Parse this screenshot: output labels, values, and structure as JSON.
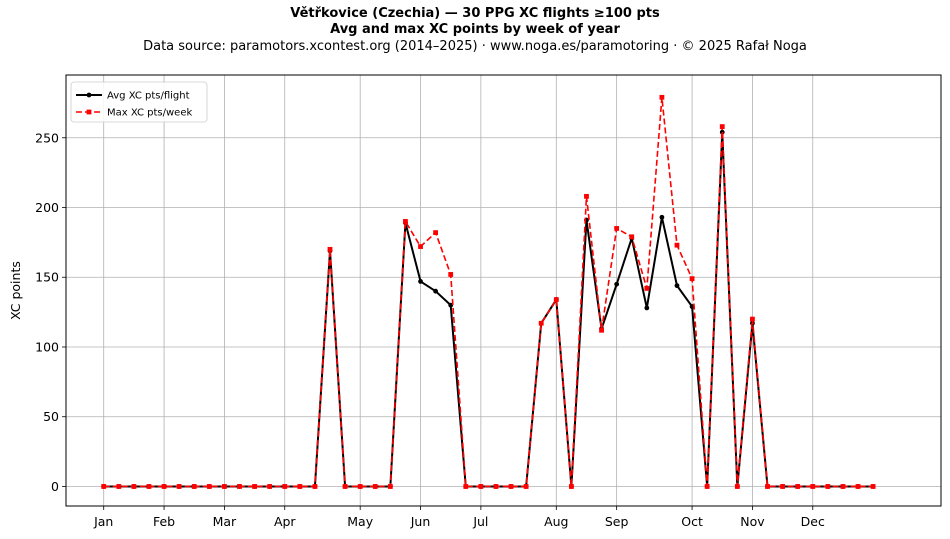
{
  "title": "Větřkovice (Czechia)  —  30 PPG XC flights ≥100 pts",
  "subtitle": "Avg and max XC points by week of year",
  "source_line": "Data source: paramotors.xcontest.org (2014–2025)  ·  www.noga.es/paramotoring  ·  © 2025 Rafał Noga",
  "chart_data": {
    "type": "line",
    "title": "Větřkovice (Czechia)  —  30 PPG XC flights ≥100 pts",
    "subtitle": "Avg and max XC points by week of year",
    "xlabel": "",
    "ylabel": "XC points",
    "x_unit": "week of year",
    "xlim": [
      -1.5,
      56.5
    ],
    "ylim": [
      -14,
      295
    ],
    "x_tick_positions": [
      1,
      5,
      9,
      13,
      18,
      22,
      26,
      31,
      35,
      40,
      44,
      48
    ],
    "x_tick_labels": [
      "Jan",
      "Feb",
      "Mar",
      "Apr",
      "May",
      "Jun",
      "Jul",
      "Aug",
      "Sep",
      "Oct",
      "Nov",
      "Dec"
    ],
    "y_ticks": [
      0,
      50,
      100,
      150,
      200,
      250
    ],
    "grid": true,
    "legend_position": "top-left",
    "x": [
      1,
      2,
      3,
      4,
      5,
      6,
      7,
      8,
      9,
      10,
      11,
      12,
      13,
      14,
      15,
      16,
      17,
      18,
      19,
      20,
      21,
      22,
      23,
      24,
      25,
      26,
      27,
      28,
      29,
      30,
      31,
      32,
      33,
      34,
      35,
      36,
      37,
      38,
      39,
      40,
      41,
      42,
      43,
      44,
      45,
      46,
      47,
      48,
      49,
      50,
      51,
      52
    ],
    "series": [
      {
        "name": "Avg XC pts/flight",
        "color": "#000000",
        "style": "solid",
        "marker": "circle",
        "values": [
          0,
          0,
          0,
          0,
          0,
          0,
          0,
          0,
          0,
          0,
          0,
          0,
          0,
          0,
          0,
          169,
          0,
          0,
          0,
          0,
          189,
          147,
          140,
          130,
          0,
          0,
          0,
          0,
          0,
          117,
          134,
          0,
          191,
          113,
          145,
          178,
          128,
          193,
          144,
          129,
          0,
          254,
          0,
          117,
          0,
          0,
          0,
          0,
          0,
          0,
          0,
          0
        ]
      },
      {
        "name": "Max XC pts/week",
        "color": "#ff0000",
        "style": "dashed",
        "marker": "square",
        "values": [
          0,
          0,
          0,
          0,
          0,
          0,
          0,
          0,
          0,
          0,
          0,
          0,
          0,
          0,
          0,
          170,
          0,
          0,
          0,
          0,
          190,
          172,
          182,
          152,
          0,
          0,
          0,
          0,
          0,
          117,
          134,
          0,
          208,
          112,
          185,
          179,
          142,
          279,
          173,
          149,
          0,
          258,
          0,
          120,
          0,
          0,
          0,
          0,
          0,
          0,
          0,
          0
        ]
      }
    ]
  }
}
